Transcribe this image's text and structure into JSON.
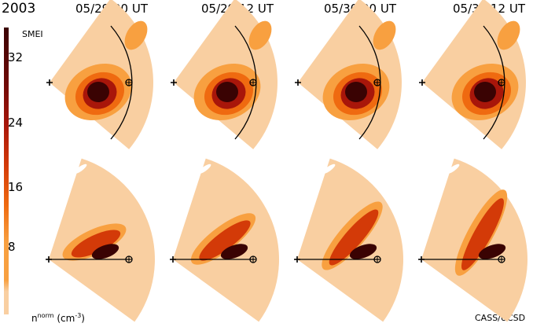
{
  "year": "2003",
  "header": {
    "timestamps": [
      "05/29 00 UT",
      "05/29 12 UT",
      "05/30 00 UT",
      "05/30 12 UT"
    ]
  },
  "colorbar": {
    "title": "SMEI",
    "ticks": [
      "32",
      "24",
      "16",
      "8"
    ],
    "units": "n^norm (cm^-3)",
    "units_main": "n",
    "units_sup": "norm",
    "units_paren": "(cm",
    "units_exp": "-3",
    "units_close": ")",
    "colors": [
      "#f9cfa1",
      "#f8a040",
      "#ef6a10",
      "#d33a08",
      "#a8160a",
      "#700a06",
      "#3a0303"
    ]
  },
  "credit": "CASS/UCSD",
  "panels": {
    "rows": [
      "top-view",
      "side-view"
    ],
    "count_per_row": 4
  }
}
